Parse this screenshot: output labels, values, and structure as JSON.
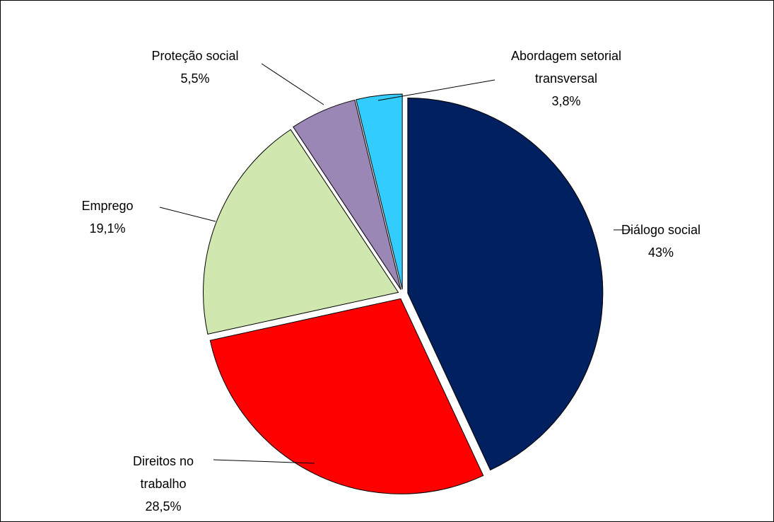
{
  "chart_data": {
    "type": "pie",
    "title": "",
    "slices": [
      {
        "label": "Diálogo social",
        "value_label": "43%",
        "value": 43.0,
        "color": "#002060"
      },
      {
        "label": "Direitos no trabalho",
        "value_label": "28,5%",
        "value": 28.5,
        "color": "#FF0000"
      },
      {
        "label": "Emprego",
        "value_label": "19,1%",
        "value": 19.1,
        "color": "#D0E8B0"
      },
      {
        "label": "Proteção social",
        "value_label": "5,5%",
        "value": 5.5,
        "color": "#9B87B5"
      },
      {
        "label": "Abordagem setorial transversal",
        "value_label": "3,8%",
        "value": 3.8,
        "color": "#33CCFF"
      }
    ],
    "start_angle_deg": 0,
    "direction": "clockwise",
    "exploded": true,
    "legend": "none",
    "data_labels": "outside-with-leader-lines"
  }
}
